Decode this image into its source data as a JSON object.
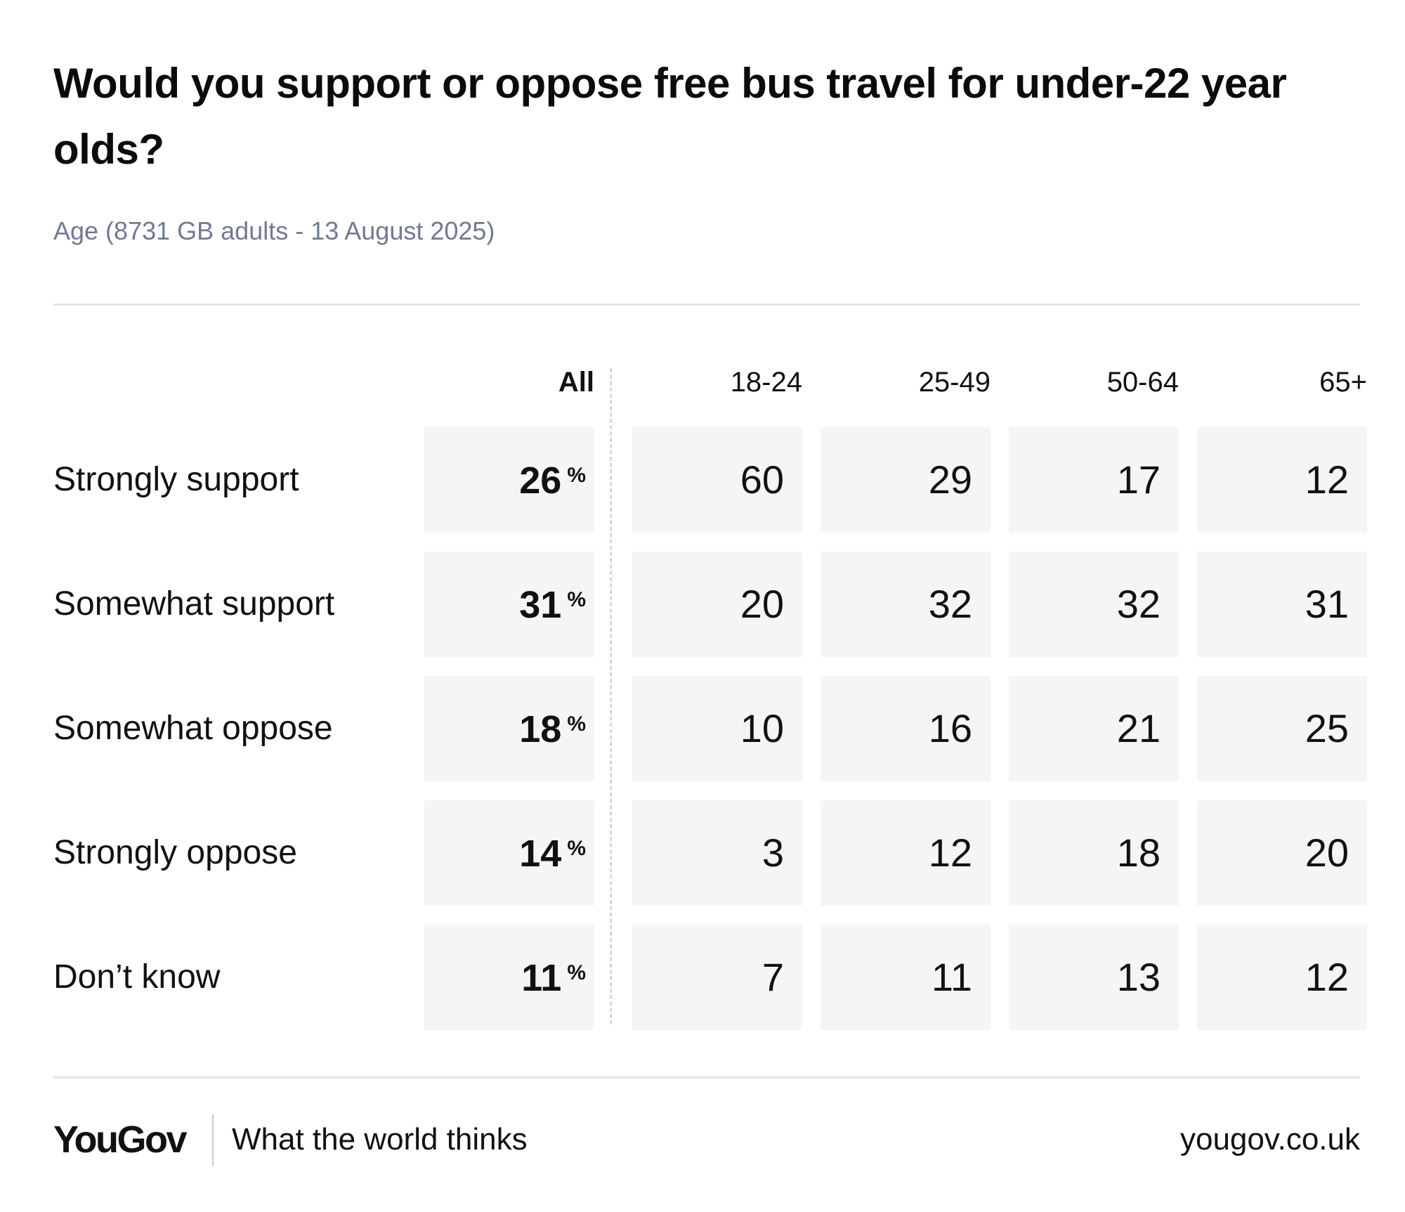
{
  "chart_data": {
    "type": "table",
    "title": "Would you support or oppose free bus travel for under-22 year olds?",
    "subtitle": "Age (8731 GB adults - 13 August 2025)",
    "columns": [
      "All",
      "18-24",
      "25-49",
      "50-64",
      "65+"
    ],
    "rows": [
      {
        "label": "Strongly support",
        "values": [
          26,
          60,
          29,
          17,
          12
        ]
      },
      {
        "label": "Somewhat support",
        "values": [
          31,
          20,
          32,
          32,
          31
        ]
      },
      {
        "label": "Somewhat oppose",
        "values": [
          18,
          10,
          16,
          21,
          25
        ]
      },
      {
        "label": "Strongly oppose",
        "values": [
          14,
          3,
          12,
          18,
          20
        ]
      },
      {
        "label": "Don’t know",
        "values": [
          11,
          7,
          11,
          13,
          12
        ]
      }
    ],
    "unit": "%"
  },
  "footer": {
    "brand": "YouGov",
    "tagline": "What the world thinks",
    "url": "yougov.co.uk"
  },
  "colors": {
    "cell_background": "#f4f5f7",
    "subtitle": "#6f7a93",
    "rule": "#e3e5ec"
  }
}
